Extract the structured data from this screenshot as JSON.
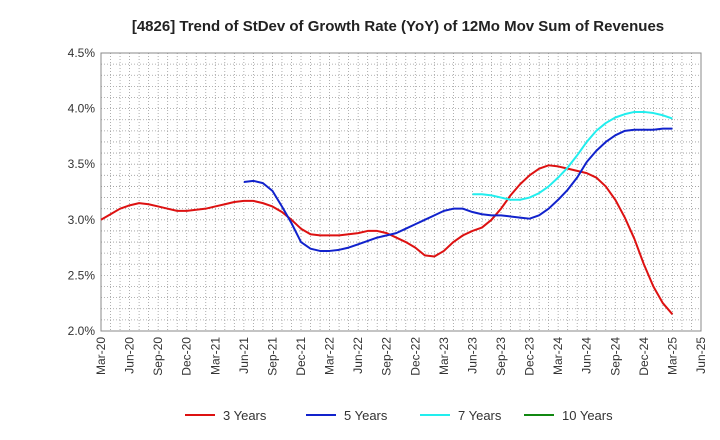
{
  "chart_data": {
    "type": "line",
    "title": "[4826]  Trend of StDev of Growth Rate (YoY) of 12Mo Mov Sum of Revenues",
    "xlabel": "",
    "ylabel": "",
    "ylim": [
      2.0,
      4.5
    ],
    "yticks": [
      2.0,
      2.5,
      3.0,
      3.5,
      4.0,
      4.5
    ],
    "ytick_labels": [
      "2.0%",
      "2.5%",
      "3.0%",
      "3.5%",
      "4.0%",
      "4.5%"
    ],
    "x_start": "Mar-20",
    "x_range_months": [
      0,
      63
    ],
    "xtick_months": [
      0,
      3,
      6,
      9,
      12,
      15,
      18,
      21,
      24,
      27,
      30,
      33,
      36,
      39,
      42,
      45,
      48,
      51,
      54,
      57,
      60,
      63
    ],
    "xtick_labels": [
      "Mar-20",
      "Jun-20",
      "Sep-20",
      "Dec-20",
      "Mar-21",
      "Jun-21",
      "Sep-21",
      "Dec-21",
      "Mar-22",
      "Jun-22",
      "Sep-22",
      "Dec-22",
      "Mar-23",
      "Jun-23",
      "Sep-23",
      "Dec-23",
      "Mar-24",
      "Jun-24",
      "Sep-24",
      "Dec-24",
      "Mar-25",
      "Jun-25"
    ],
    "grid": true,
    "legend_position": "bottom",
    "series": [
      {
        "name": "3 Years",
        "color": "#dd1111",
        "x": [
          0,
          1,
          2,
          3,
          4,
          5,
          6,
          7,
          8,
          9,
          10,
          11,
          12,
          13,
          14,
          15,
          16,
          17,
          18,
          19,
          20,
          21,
          22,
          23,
          24,
          25,
          26,
          27,
          28,
          29,
          30,
          31,
          32,
          33,
          34,
          35,
          36,
          37,
          38,
          39,
          40,
          41,
          42,
          43,
          44,
          45,
          46,
          47,
          48,
          49,
          50,
          51,
          52,
          53,
          54,
          55,
          56,
          57,
          58,
          59,
          60
        ],
        "values": [
          3.0,
          3.05,
          3.1,
          3.13,
          3.15,
          3.14,
          3.12,
          3.1,
          3.08,
          3.08,
          3.09,
          3.1,
          3.12,
          3.14,
          3.16,
          3.17,
          3.17,
          3.15,
          3.12,
          3.07,
          3.0,
          2.92,
          2.87,
          2.86,
          2.86,
          2.86,
          2.87,
          2.88,
          2.9,
          2.9,
          2.88,
          2.84,
          2.8,
          2.75,
          2.68,
          2.67,
          2.72,
          2.8,
          2.86,
          2.9,
          2.93,
          3.0,
          3.1,
          3.22,
          3.32,
          3.4,
          3.46,
          3.49,
          3.48,
          3.46,
          3.44,
          3.42,
          3.38,
          3.3,
          3.18,
          3.02,
          2.83,
          2.6,
          2.4,
          2.25,
          2.15
        ]
      },
      {
        "name": "5 Years",
        "color": "#1122cc",
        "x": [
          15,
          16,
          17,
          18,
          19,
          20,
          21,
          22,
          23,
          24,
          25,
          26,
          27,
          28,
          29,
          30,
          31,
          32,
          33,
          34,
          35,
          36,
          37,
          38,
          39,
          40,
          41,
          42,
          43,
          44,
          45,
          46,
          47,
          48,
          49,
          50,
          51,
          52,
          53,
          54,
          55,
          56,
          57,
          58,
          59,
          60
        ],
        "values": [
          3.34,
          3.35,
          3.33,
          3.26,
          3.12,
          2.97,
          2.8,
          2.74,
          2.72,
          2.72,
          2.73,
          2.75,
          2.78,
          2.81,
          2.84,
          2.86,
          2.88,
          2.92,
          2.96,
          3.0,
          3.04,
          3.08,
          3.1,
          3.1,
          3.07,
          3.05,
          3.04,
          3.04,
          3.03,
          3.02,
          3.01,
          3.04,
          3.1,
          3.18,
          3.27,
          3.38,
          3.52,
          3.62,
          3.7,
          3.76,
          3.8,
          3.81,
          3.81,
          3.81,
          3.82,
          3.82
        ]
      },
      {
        "name": "7 Years",
        "color": "#22eeee",
        "x": [
          39,
          40,
          41,
          42,
          43,
          44,
          45,
          46,
          47,
          48,
          49,
          50,
          51,
          52,
          53,
          54,
          55,
          56,
          57,
          58,
          59,
          60
        ],
        "values": [
          3.23,
          3.23,
          3.22,
          3.2,
          3.18,
          3.18,
          3.2,
          3.24,
          3.3,
          3.38,
          3.47,
          3.58,
          3.7,
          3.8,
          3.87,
          3.92,
          3.95,
          3.97,
          3.97,
          3.96,
          3.94,
          3.91
        ]
      },
      {
        "name": "10 Years",
        "color": "#118811",
        "x": [],
        "values": []
      }
    ]
  }
}
